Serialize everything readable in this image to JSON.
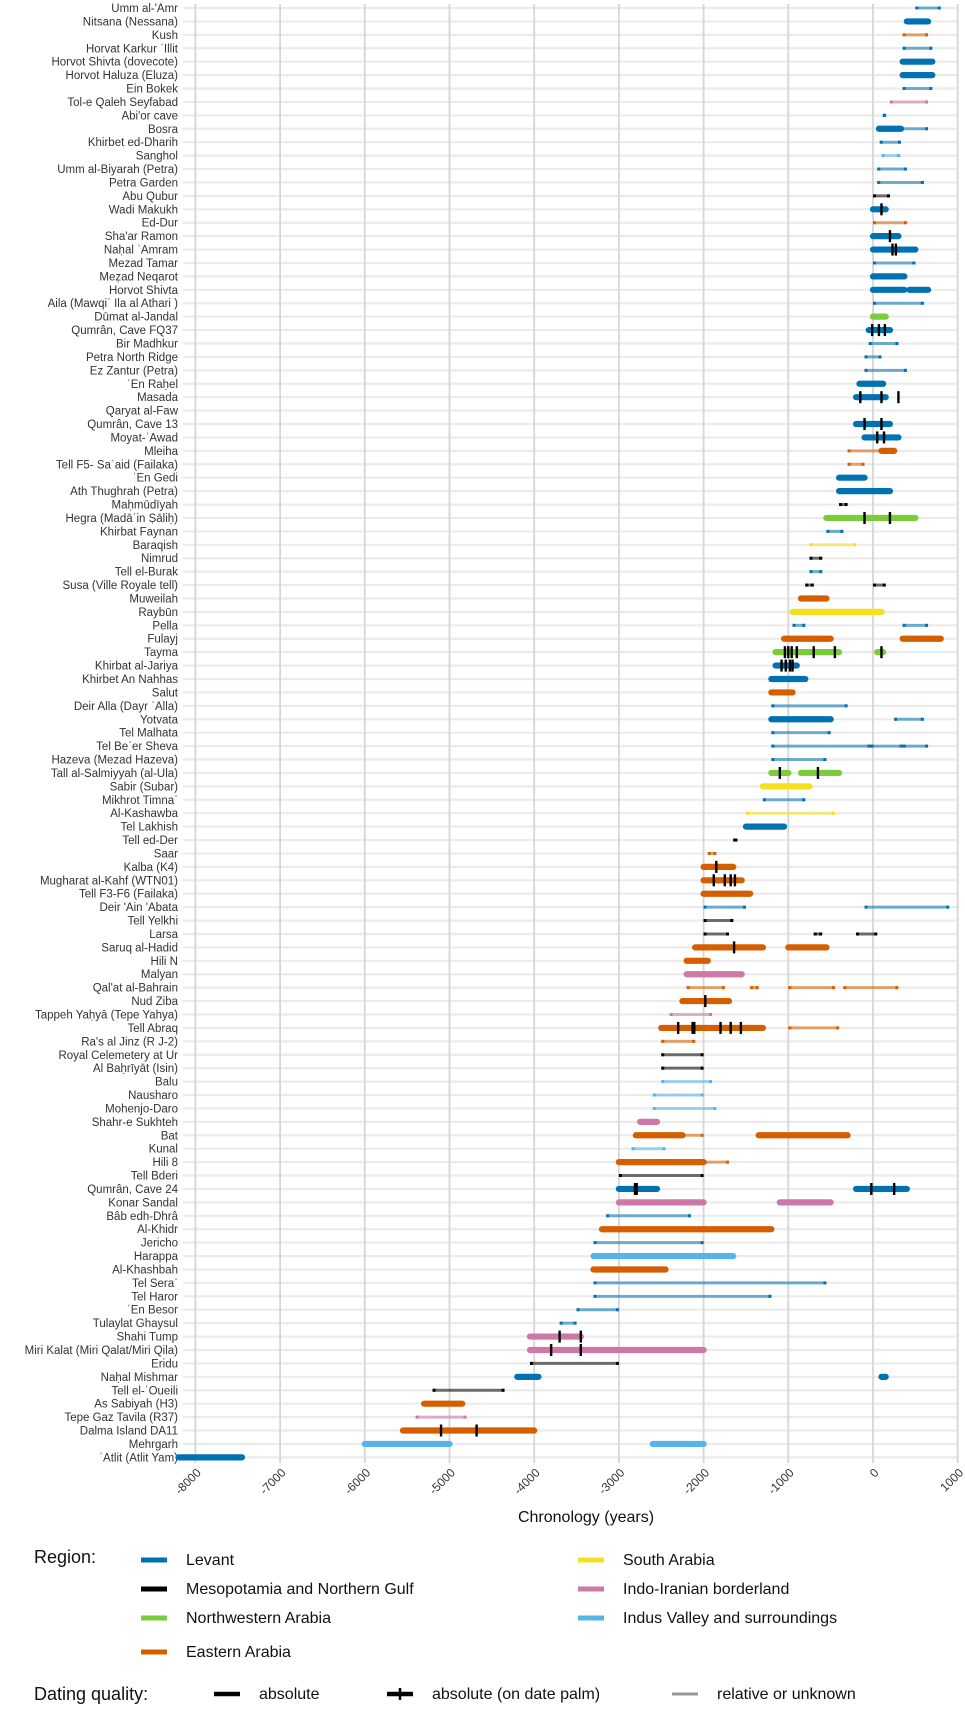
{
  "chart_data": {
    "type": "range-timeline",
    "xlabel": "Chronology (years)",
    "xlim": [
      -8200,
      1000
    ],
    "xticks": [
      -8000,
      -7000,
      -6000,
      -5000,
      -4000,
      -3000,
      -2000,
      -1000,
      0,
      1000
    ],
    "sites": [
      "Umm al-'Amr",
      "Nitsana (Nessana)",
      "Kush",
      "Horvat Karkur ʿIllit",
      "Horvot Shivta (dovecote)",
      "Horvot Haluza (Eluza)",
      "Ein Bokek",
      "Tol-e Qaleh Seyfabad",
      "Abi'or cave",
      "Bosra",
      "Khirbet ed-Dharih",
      "Sanghol",
      "Umm al-Biyarah (Petra)",
      "Petra Garden",
      "Abu Qubur",
      "Wadi Makukh",
      "Ed-Dur",
      "Sha'ar Ramon",
      "Naḥal ʿAmram",
      "Mezad Tamar",
      "Meẓad Neqarot",
      "Horvot Shivta",
      "Aila (Mawqiʿ Ila al Athari )",
      "Dūmat al-Jandal",
      "Qumrân, Cave FQ37",
      "Bir Madhkur",
      "Petra North Ridge",
      "Ez Zantur (Petra)",
      "ʿEn Raḥel",
      "Masada",
      "Qaryat al-Faw",
      "Qumrân, Cave 13",
      "Moyat-ʿAwad",
      "Mleiha",
      "Tell F5- Saʿaid (Failaka)",
      "ʿEn Gedi",
      "Ath Thughrah (Petra)",
      "Maḥmūdīyah",
      "Hegra (Madāʾin Ṣāliḥ)",
      "Khirbat Faynan",
      "Baraqish",
      "Nimrud",
      "Tell el-Burak",
      "Susa (Ville Royale tell)",
      "Muweilah",
      "Raybūn",
      "Pella",
      "Fulayj",
      "Tayma",
      "Khirbat al-Jariya",
      "Khirbet An Nahhas",
      "Salut",
      "Deir Alla (Dayr ʿAlla)",
      "Yotvata",
      "Tel Malhata",
      "Tel Beʾer Sheva",
      "Hazeva (Mezad Hazeva)",
      "Tall al-Salmiyyah (al-Ula)",
      "Sabir (Subar)",
      "Mikhrot Timnaʿ",
      "Al-Kashawba",
      "Tel Lakhish",
      "Tell ed-Der",
      "Saar",
      "Kalba (K4)",
      "Mugharat al-Kahf (WTN01)",
      "Tell F3-F6 (Failaka)",
      "Deir 'Ain 'Abata",
      "Tell Yelkhi",
      "Larsa",
      "Saruq al-Hadid",
      "Hili N",
      "Malyan",
      "Qal'at al-Bahrain",
      "Nud Ziba",
      "Tappeh Yaḥyā (Tepe Yahya)",
      "Tell Abraq",
      "Ra's al Jinz (R J-2)",
      "Royal Celemetery at Ur",
      "Al Baḥrīyāt (Isin)",
      "Balu",
      "Nausharo",
      "Mohenjo-Daro",
      "Shahr-e Sukhteh",
      "Bat",
      "Kunal",
      "Hili 8",
      "Tell Bderi",
      "Qumrân, Cave 24",
      "Konar Sandal",
      "Bâb edh-Dhrâ",
      "Al-Khidr",
      "Jericho",
      "Harappa",
      "Al-Khashbah",
      "Tel Seraʿ",
      "Tel Haror",
      "ʿEn Besor",
      "Tulaylat Ghaysul",
      "Shahi Tump",
      "Miri Kalat (Miri Qalat/Miri Qila)",
      "Eridu",
      "Naḥal Mishmar",
      "Tell el-ʿOueili",
      "As Sabiyah (H3)",
      "Tepe Gaz Tavila (R37)",
      "Dalma Island DA11",
      "Mehrgarh",
      "ʿAtlit (Atlit Yam)"
    ],
    "colors": {
      "levant": "#0072B2",
      "meso": "#000000",
      "nwa": "#7CCB3A",
      "ea": "#D55E00",
      "sa": "#F5E020",
      "iib": "#CC79A7",
      "indus": "#56B4E9",
      "rel": "#909090"
    },
    "ranges": [
      [
        0,
        500,
        800,
        "levant",
        "rel"
      ],
      [
        1,
        400,
        650,
        "levant",
        "abs"
      ],
      [
        2,
        350,
        650,
        "ea",
        "rel"
      ],
      [
        3,
        350,
        700,
        "levant",
        "rel"
      ],
      [
        4,
        350,
        700,
        "levant",
        "abs"
      ],
      [
        5,
        350,
        700,
        "levant",
        "abs"
      ],
      [
        6,
        350,
        700,
        "levant",
        "rel"
      ],
      [
        7,
        200,
        650,
        "iib",
        "rel"
      ],
      [
        8,
        120,
        150,
        "levant",
        "rel"
      ],
      [
        9,
        70,
        330,
        "levant",
        "abs"
      ],
      [
        9,
        330,
        650,
        "levant",
        "rel"
      ],
      [
        10,
        80,
        330,
        "levant",
        "rel"
      ],
      [
        11,
        100,
        320,
        "indus",
        "rel"
      ],
      [
        12,
        50,
        400,
        "levant",
        "rel"
      ],
      [
        13,
        50,
        600,
        "levant",
        "rel"
      ],
      [
        14,
        0,
        200,
        "meso",
        "rel"
      ],
      [
        15,
        0,
        150,
        "levant",
        "abs"
      ],
      [
        16,
        0,
        400,
        "ea",
        "rel"
      ],
      [
        17,
        0,
        300,
        "levant",
        "abs"
      ],
      [
        18,
        0,
        500,
        "levant",
        "abs"
      ],
      [
        19,
        0,
        500,
        "levant",
        "rel"
      ],
      [
        20,
        0,
        370,
        "levant",
        "abs"
      ],
      [
        21,
        0,
        370,
        "levant",
        "abs"
      ],
      [
        21,
        430,
        650,
        "levant",
        "abs"
      ],
      [
        22,
        0,
        600,
        "levant",
        "rel"
      ],
      [
        23,
        0,
        150,
        "nwa",
        "abs"
      ],
      [
        24,
        -50,
        200,
        "levant",
        "abs"
      ],
      [
        25,
        -50,
        300,
        "levant",
        "rel"
      ],
      [
        26,
        -100,
        100,
        "levant",
        "rel"
      ],
      [
        27,
        -100,
        400,
        "levant",
        "rel"
      ],
      [
        28,
        -160,
        120,
        "levant",
        "abs"
      ],
      [
        29,
        -200,
        150,
        "levant",
        "abs"
      ],
      [
        31,
        -200,
        200,
        "levant",
        "abs"
      ],
      [
        32,
        -100,
        300,
        "levant",
        "abs"
      ],
      [
        33,
        100,
        250,
        "ea",
        "abs"
      ],
      [
        33,
        -300,
        100,
        "ea",
        "rel"
      ],
      [
        34,
        -300,
        -100,
        "ea",
        "rel"
      ],
      [
        35,
        -400,
        -100,
        "levant",
        "abs"
      ],
      [
        36,
        -400,
        200,
        "levant",
        "abs"
      ],
      [
        37,
        -400,
        -300,
        "meso",
        "rel"
      ],
      [
        38,
        -550,
        500,
        "nwa",
        "abs"
      ],
      [
        39,
        -550,
        -350,
        "levant",
        "rel"
      ],
      [
        40,
        -750,
        -200,
        "sa",
        "rel"
      ],
      [
        41,
        -750,
        -600,
        "meso",
        "rel"
      ],
      [
        42,
        -750,
        -600,
        "levant",
        "rel"
      ],
      [
        43,
        -800,
        -700,
        "meso",
        "rel"
      ],
      [
        43,
        0,
        150,
        "meso",
        "rel"
      ],
      [
        44,
        -850,
        -550,
        "ea",
        "abs"
      ],
      [
        45,
        -950,
        100,
        "sa",
        "abs"
      ],
      [
        46,
        -950,
        -800,
        "levant",
        "rel"
      ],
      [
        46,
        350,
        650,
        "levant",
        "rel"
      ],
      [
        47,
        -1050,
        -500,
        "ea",
        "abs"
      ],
      [
        47,
        350,
        800,
        "ea",
        "abs"
      ],
      [
        48,
        -1150,
        -400,
        "nwa",
        "abs"
      ],
      [
        48,
        50,
        120,
        "nwa",
        "abs"
      ],
      [
        49,
        -1150,
        -900,
        "levant",
        "abs"
      ],
      [
        50,
        -1200,
        -800,
        "levant",
        "abs"
      ],
      [
        51,
        -1200,
        -950,
        "ea",
        "abs"
      ],
      [
        52,
        -1200,
        -300,
        "levant",
        "rel"
      ],
      [
        53,
        -1200,
        -500,
        "levant",
        "abs"
      ],
      [
        53,
        250,
        600,
        "levant",
        "rel"
      ],
      [
        54,
        -1200,
        -500,
        "levant",
        "rel"
      ],
      [
        55,
        -1200,
        -30,
        "levant",
        "rel"
      ],
      [
        55,
        -30,
        350,
        "levant",
        "rel"
      ],
      [
        55,
        350,
        650,
        "levant",
        "rel"
      ],
      [
        56,
        -1200,
        -550,
        "levant",
        "rel"
      ],
      [
        57,
        -1200,
        -1000,
        "nwa",
        "abs"
      ],
      [
        57,
        -850,
        -400,
        "nwa",
        "abs"
      ],
      [
        58,
        -1300,
        -750,
        "sa",
        "abs"
      ],
      [
        59,
        -1300,
        -800,
        "levant",
        "rel"
      ],
      [
        60,
        -1500,
        -450,
        "sa",
        "rel"
      ],
      [
        61,
        -1500,
        -1050,
        "levant",
        "abs"
      ],
      [
        62,
        -1650,
        -1600,
        "meso",
        "rel"
      ],
      [
        63,
        -1950,
        -1850,
        "ea",
        "rel"
      ],
      [
        64,
        -2000,
        -1650,
        "ea",
        "abs"
      ],
      [
        65,
        -2000,
        -1550,
        "ea",
        "abs"
      ],
      [
        66,
        -2000,
        -1450,
        "ea",
        "abs"
      ],
      [
        67,
        -2000,
        -1500,
        "levant",
        "rel"
      ],
      [
        67,
        -100,
        900,
        "levant",
        "rel"
      ],
      [
        68,
        -2000,
        -1650,
        "meso",
        "rel"
      ],
      [
        69,
        -2000,
        -1700,
        "meso",
        "rel"
      ],
      [
        69,
        -700,
        -600,
        "meso",
        "rel"
      ],
      [
        69,
        -200,
        50,
        "meso",
        "rel"
      ],
      [
        70,
        -2100,
        -1300,
        "ea",
        "abs"
      ],
      [
        70,
        -1000,
        -550,
        "ea",
        "abs"
      ],
      [
        71,
        -2200,
        -1950,
        "ea",
        "abs"
      ],
      [
        72,
        -2200,
        -1550,
        "iib",
        "abs"
      ],
      [
        73,
        -2200,
        -1750,
        "ea",
        "rel"
      ],
      [
        73,
        -1450,
        -1350,
        "ea",
        "rel"
      ],
      [
        73,
        -1000,
        -450,
        "ea",
        "rel"
      ],
      [
        73,
        -350,
        300,
        "ea",
        "rel"
      ],
      [
        74,
        -2250,
        -1700,
        "ea",
        "abs"
      ],
      [
        75,
        -2400,
        -1900,
        "iib",
        "rel"
      ],
      [
        76,
        -2500,
        -1300,
        "ea",
        "abs"
      ],
      [
        76,
        -1000,
        -400,
        "ea",
        "rel"
      ],
      [
        77,
        -2500,
        -2100,
        "ea",
        "rel"
      ],
      [
        78,
        -2500,
        -2000,
        "meso",
        "rel"
      ],
      [
        79,
        -2500,
        -2000,
        "meso",
        "rel"
      ],
      [
        80,
        -2500,
        -1900,
        "indus",
        "rel"
      ],
      [
        81,
        -2600,
        -2000,
        "indus",
        "rel"
      ],
      [
        82,
        -2600,
        -1850,
        "indus",
        "rel"
      ],
      [
        83,
        -2750,
        -2550,
        "iib",
        "abs"
      ],
      [
        84,
        -2800,
        -2250,
        "ea",
        "abs"
      ],
      [
        84,
        -2250,
        -2000,
        "ea",
        "rel"
      ],
      [
        84,
        -1350,
        -300,
        "ea",
        "abs"
      ],
      [
        85,
        -2850,
        -2450,
        "indus",
        "rel"
      ],
      [
        86,
        -3000,
        -2000,
        "ea",
        "abs"
      ],
      [
        86,
        -2000,
        -1700,
        "ea",
        "rel"
      ],
      [
        87,
        -3000,
        -2000,
        "meso",
        "rel"
      ],
      [
        88,
        -3000,
        -2550,
        "levant",
        "abs"
      ],
      [
        88,
        -200,
        400,
        "levant",
        "abs"
      ],
      [
        89,
        -3000,
        -2000,
        "iib",
        "abs"
      ],
      [
        89,
        -1100,
        -500,
        "iib",
        "abs"
      ],
      [
        90,
        -3150,
        -2150,
        "levant",
        "rel"
      ],
      [
        91,
        -3200,
        -1200,
        "ea",
        "abs"
      ],
      [
        92,
        -3300,
        -2000,
        "levant",
        "rel"
      ],
      [
        93,
        -3300,
        -1650,
        "indus",
        "abs"
      ],
      [
        94,
        -3300,
        -2450,
        "ea",
        "abs"
      ],
      [
        95,
        -3300,
        -550,
        "levant",
        "rel"
      ],
      [
        96,
        -3300,
        -1200,
        "levant",
        "rel"
      ],
      [
        97,
        -3500,
        -3000,
        "levant",
        "rel"
      ],
      [
        98,
        -3700,
        -3500,
        "levant",
        "rel"
      ],
      [
        99,
        -4050,
        -3450,
        "iib",
        "abs"
      ],
      [
        100,
        -4050,
        -2000,
        "iib",
        "abs"
      ],
      [
        101,
        -4050,
        -3000,
        "meso",
        "rel"
      ],
      [
        102,
        -4200,
        -3950,
        "levant",
        "abs"
      ],
      [
        102,
        100,
        150,
        "levant",
        "abs"
      ],
      [
        103,
        -5200,
        -4350,
        "meso",
        "rel"
      ],
      [
        104,
        -5300,
        -4850,
        "ea",
        "abs"
      ],
      [
        105,
        -5400,
        -4800,
        "iib",
        "rel"
      ],
      [
        106,
        -5550,
        -4000,
        "ea",
        "abs"
      ],
      [
        107,
        -6000,
        -5000,
        "indus",
        "abs"
      ],
      [
        107,
        -2600,
        -2000,
        "indus",
        "abs"
      ],
      [
        108,
        -8200,
        -7450,
        "levant",
        "abs"
      ]
    ],
    "date_palm_marks": [
      [
        15,
        100
      ],
      [
        17,
        200
      ],
      [
        18,
        230
      ],
      [
        18,
        270
      ],
      [
        24,
        -10
      ],
      [
        24,
        70
      ],
      [
        24,
        140
      ],
      [
        29,
        -150
      ],
      [
        29,
        100
      ],
      [
        29,
        300
      ],
      [
        31,
        -100
      ],
      [
        31,
        100
      ],
      [
        32,
        50
      ],
      [
        32,
        130
      ],
      [
        38,
        -100
      ],
      [
        38,
        200
      ],
      [
        48,
        -1040
      ],
      [
        48,
        -1000
      ],
      [
        48,
        -960
      ],
      [
        48,
        -900
      ],
      [
        48,
        -700
      ],
      [
        48,
        -450
      ],
      [
        48,
        100
      ],
      [
        49,
        -1080
      ],
      [
        49,
        -1030
      ],
      [
        49,
        -980
      ],
      [
        49,
        -950
      ],
      [
        57,
        -1100
      ],
      [
        57,
        -650
      ],
      [
        64,
        -1850
      ],
      [
        65,
        -1880
      ],
      [
        65,
        -1750
      ],
      [
        65,
        -1680
      ],
      [
        65,
        -1630
      ],
      [
        70,
        -1640
      ],
      [
        74,
        -1980
      ],
      [
        76,
        -2300
      ],
      [
        76,
        -2130
      ],
      [
        76,
        -2110
      ],
      [
        76,
        -1800
      ],
      [
        76,
        -1680
      ],
      [
        76,
        -1560
      ],
      [
        88,
        -2810
      ],
      [
        88,
        -2790
      ],
      [
        88,
        -20
      ],
      [
        88,
        250
      ],
      [
        99,
        -3700
      ],
      [
        99,
        -3450
      ],
      [
        100,
        -3800
      ],
      [
        100,
        -3450
      ],
      [
        106,
        -5100
      ],
      [
        106,
        -4680
      ]
    ],
    "legend": {
      "region_title": "Region:",
      "regions": [
        {
          "key": "levant",
          "label": "Levant"
        },
        {
          "key": "meso",
          "label": "Mesopotamia and Northern Gulf"
        },
        {
          "key": "nwa",
          "label": "Northwestern Arabia"
        },
        {
          "key": "ea",
          "label": "Eastern Arabia"
        },
        {
          "key": "sa",
          "label": "South Arabia"
        },
        {
          "key": "iib",
          "label": "Indo-Iranian borderland"
        },
        {
          "key": "indus",
          "label": "Indus Valley and surroundings"
        }
      ],
      "quality_title": "Dating quality:",
      "qualities": [
        {
          "key": "abs",
          "label": "absolute"
        },
        {
          "key": "palm",
          "label": "absolute (on date palm)"
        },
        {
          "key": "rel",
          "label": "relative or unknown"
        }
      ]
    }
  }
}
